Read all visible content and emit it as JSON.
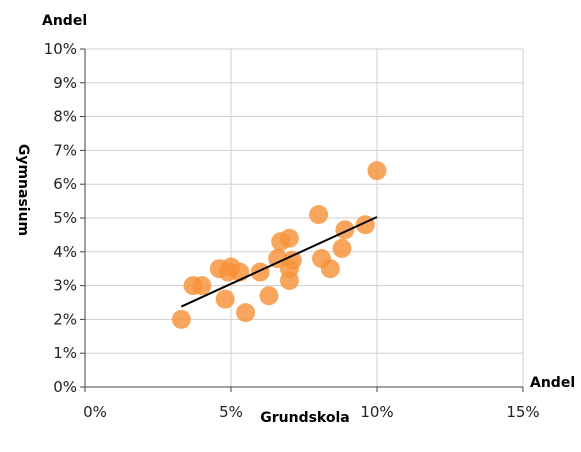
{
  "chart_data": {
    "type": "scatter",
    "xlabel": "Grundskola",
    "ylabel": "Gymnasium",
    "x_unit_label": "Andel",
    "y_unit_label": "Andel",
    "xlim": [
      0,
      15
    ],
    "ylim": [
      0,
      10
    ],
    "x_ticks": [
      "0%",
      "5%",
      "10%",
      "15%"
    ],
    "y_ticks": [
      "0%",
      "1%",
      "2%",
      "3%",
      "4%",
      "5%",
      "6%",
      "7%",
      "8%",
      "9%",
      "10%"
    ],
    "grid": true,
    "point_color": "#F7923A",
    "trend_color": "#000000",
    "points": [
      {
        "x": 3.3,
        "y": 2.0
      },
      {
        "x": 3.7,
        "y": 3.0
      },
      {
        "x": 4.0,
        "y": 3.0
      },
      {
        "x": 4.6,
        "y": 3.5
      },
      {
        "x": 4.8,
        "y": 2.6
      },
      {
        "x": 4.9,
        "y": 3.4
      },
      {
        "x": 5.0,
        "y": 3.55
      },
      {
        "x": 5.3,
        "y": 3.4
      },
      {
        "x": 5.5,
        "y": 2.2
      },
      {
        "x": 6.0,
        "y": 3.4
      },
      {
        "x": 6.3,
        "y": 2.7
      },
      {
        "x": 6.6,
        "y": 3.8
      },
      {
        "x": 6.7,
        "y": 4.3
      },
      {
        "x": 7.0,
        "y": 4.4
      },
      {
        "x": 7.0,
        "y": 3.5
      },
      {
        "x": 7.0,
        "y": 3.15
      },
      {
        "x": 7.1,
        "y": 3.75
      },
      {
        "x": 8.0,
        "y": 5.1
      },
      {
        "x": 8.1,
        "y": 3.8
      },
      {
        "x": 8.4,
        "y": 3.5
      },
      {
        "x": 8.8,
        "y": 4.1
      },
      {
        "x": 8.9,
        "y": 4.65
      },
      {
        "x": 9.6,
        "y": 4.8
      },
      {
        "x": 10.0,
        "y": 6.4
      }
    ],
    "trendline": {
      "x": [
        3.3,
        10.0
      ],
      "y": [
        2.38,
        5.03
      ]
    }
  }
}
